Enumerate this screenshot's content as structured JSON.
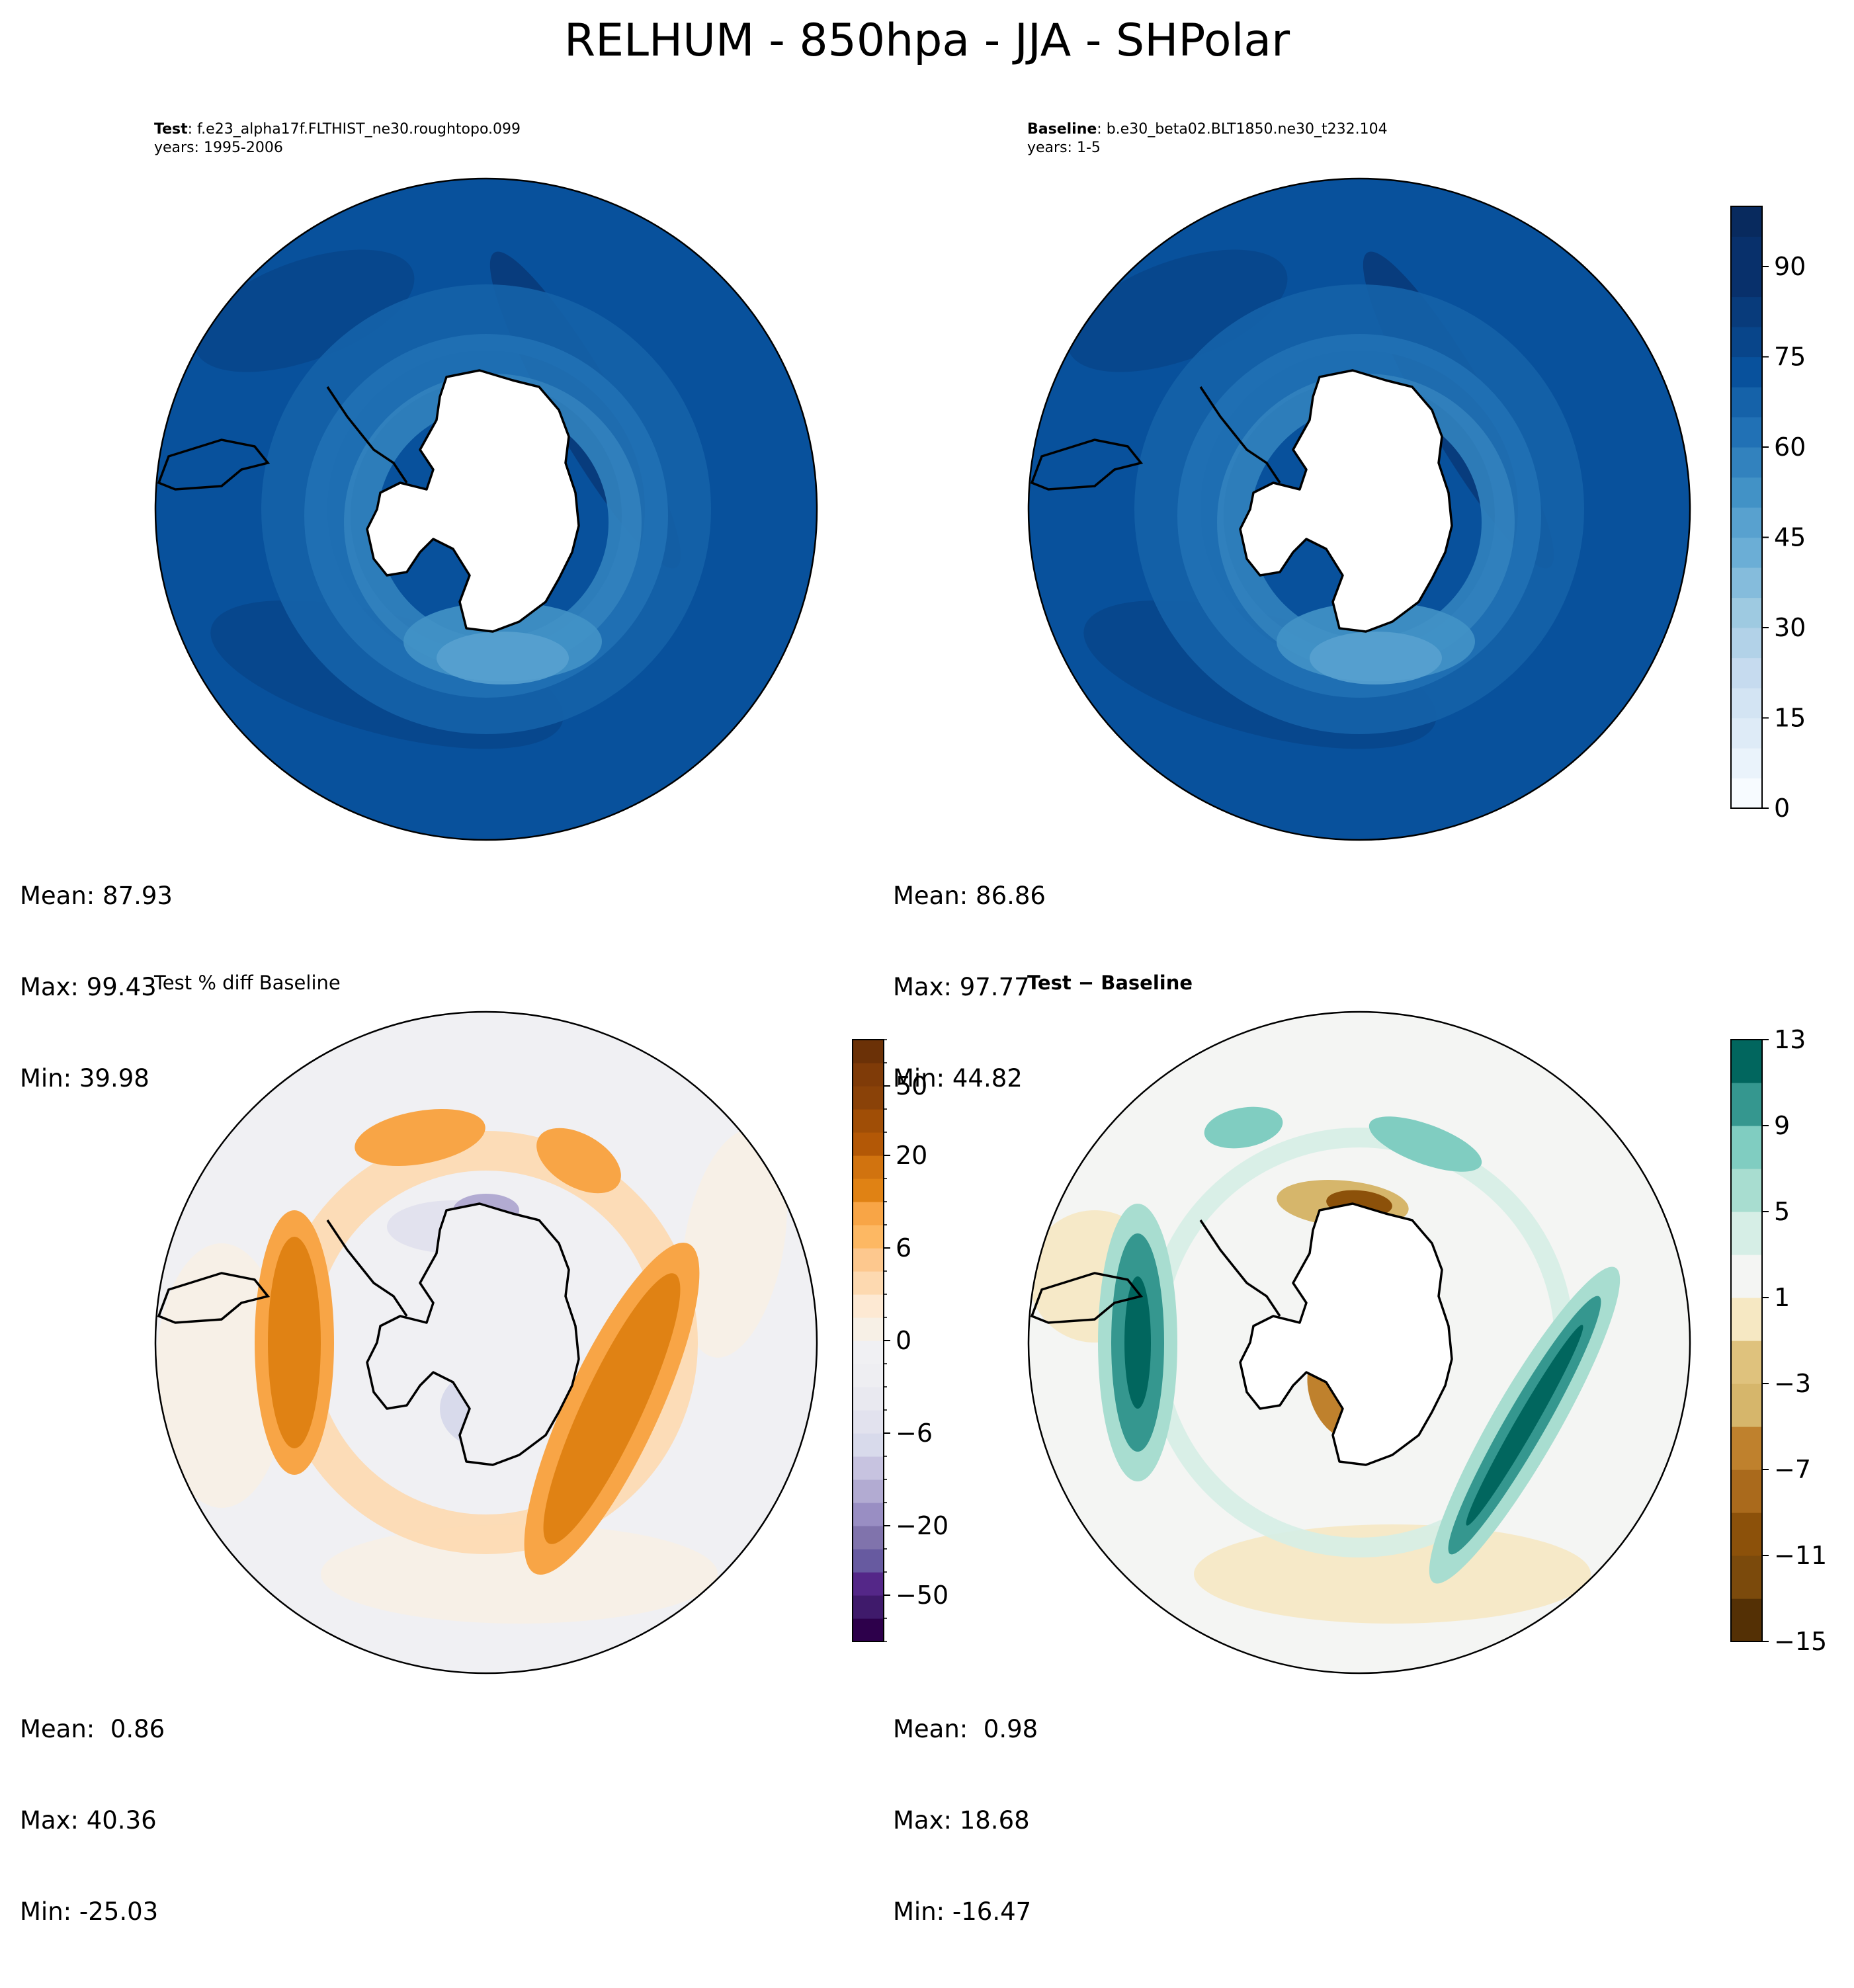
{
  "title": "RELHUM - 850hpa - JJA - SHPolar",
  "panels": [
    {
      "id": "test",
      "label_bold": "Test",
      "label_text": ": f.e23_alpha17f.FLTHIST_ne30.roughtopo.099",
      "years": "years: 1995-2006",
      "stats": {
        "mean": "Mean: 87.93",
        "max": "Max: 99.43",
        "min": "Min: 39.98"
      }
    },
    {
      "id": "baseline",
      "label_bold": "Baseline",
      "label_text": ": b.e30_beta02.BLT1850.ne30_t232.104",
      "years": "years: 1-5",
      "stats": {
        "mean": "Mean: 86.86",
        "max": "Max: 97.77",
        "min": "Min: 44.82"
      }
    },
    {
      "id": "pct-diff",
      "title": "Test % diff Baseline",
      "stats": {
        "mean": "Mean:  0.86",
        "max": "Max: 40.36",
        "min": "Min: -25.03"
      }
    },
    {
      "id": "diff",
      "title": "Test − Baseline",
      "stats": {
        "mean": "Mean:  0.98",
        "max": "Max: 18.68",
        "min": "Min: -16.47"
      }
    }
  ],
  "chart_data": [
    {
      "type": "heatmap",
      "name": "Test",
      "projection": "south-polar-stereographic",
      "variable": "RELHUM",
      "level": "850hpa",
      "season": "JJA",
      "region": "SHPolar",
      "mean": 87.93,
      "max": 99.43,
      "min": 39.98
    },
    {
      "type": "heatmap",
      "name": "Baseline",
      "projection": "south-polar-stereographic",
      "mean": 86.86,
      "max": 97.77,
      "min": 44.82,
      "colorbar": {
        "levels": [
          0,
          5,
          10,
          15,
          20,
          25,
          30,
          35,
          40,
          45,
          50,
          55,
          60,
          65,
          70,
          75,
          80,
          85,
          90,
          95,
          100
        ],
        "ticks": [
          0,
          15,
          30,
          45,
          60,
          75,
          90
        ],
        "colors": [
          "#f7fbff",
          "#eaf3fb",
          "#deebf7",
          "#d3e4f3",
          "#c6dbef",
          "#b2d2e8",
          "#9ecae1",
          "#85bcdc",
          "#6baed6",
          "#58a1cf",
          "#4292c6",
          "#3282be",
          "#2171b5",
          "#1562a9",
          "#08519c",
          "#08458a",
          "#083b7b",
          "#08306b",
          "#08306b",
          "#082a5e"
        ]
      }
    },
    {
      "type": "heatmap",
      "name": "Test % diff Baseline",
      "projection": "south-polar-stereographic",
      "mean": 0.86,
      "max": 40.36,
      "min": -25.03,
      "colorbar": {
        "levels": [
          -100,
          -75,
          -50,
          -40,
          -30,
          -20,
          -15,
          -10,
          -8,
          -6,
          -4,
          -2,
          -1,
          0,
          1,
          2,
          4,
          6,
          8,
          10,
          15,
          20,
          30,
          40,
          50,
          75,
          100
        ],
        "ticks": [
          -50,
          -20,
          -6,
          0,
          6,
          20,
          50
        ],
        "colors": [
          "#2d004b",
          "#3f1a6b",
          "#542788",
          "#675aa0",
          "#8073ac",
          "#998ec3",
          "#b2abd2",
          "#c7c3e0",
          "#d8daeb",
          "#e2e2ee",
          "#e9e9f0",
          "#eeeef2",
          "#f0f0f3",
          "#f7f0e6",
          "#fde9d3",
          "#fdd9b0",
          "#fdc88e",
          "#fdb863",
          "#f8a546",
          "#e08214",
          "#d1730f",
          "#b35806",
          "#a04e06",
          "#8a4208",
          "#7f3b08",
          "#6b3107"
        ]
      }
    },
    {
      "type": "heatmap",
      "name": "Test − Baseline",
      "projection": "south-polar-stereographic",
      "mean": 0.98,
      "max": 18.68,
      "min": -16.47,
      "colorbar": {
        "levels": [
          -15,
          -13,
          -11,
          -9,
          -7,
          -5,
          -3,
          -1,
          1,
          3,
          5,
          7,
          9,
          11,
          13
        ],
        "ticks": [
          -15,
          -11,
          -7,
          -3,
          1,
          5,
          9,
          13
        ],
        "colors": [
          "#543005",
          "#7b4a0c",
          "#8c510a",
          "#aa6a1c",
          "#bf812d",
          "#d6b66b",
          "#dfc27d",
          "#f6e8c3",
          "#f4f5f3",
          "#d6eee6",
          "#a8ddd0",
          "#80cdc1",
          "#35978f",
          "#01665e",
          "#003c30"
        ]
      }
    }
  ]
}
